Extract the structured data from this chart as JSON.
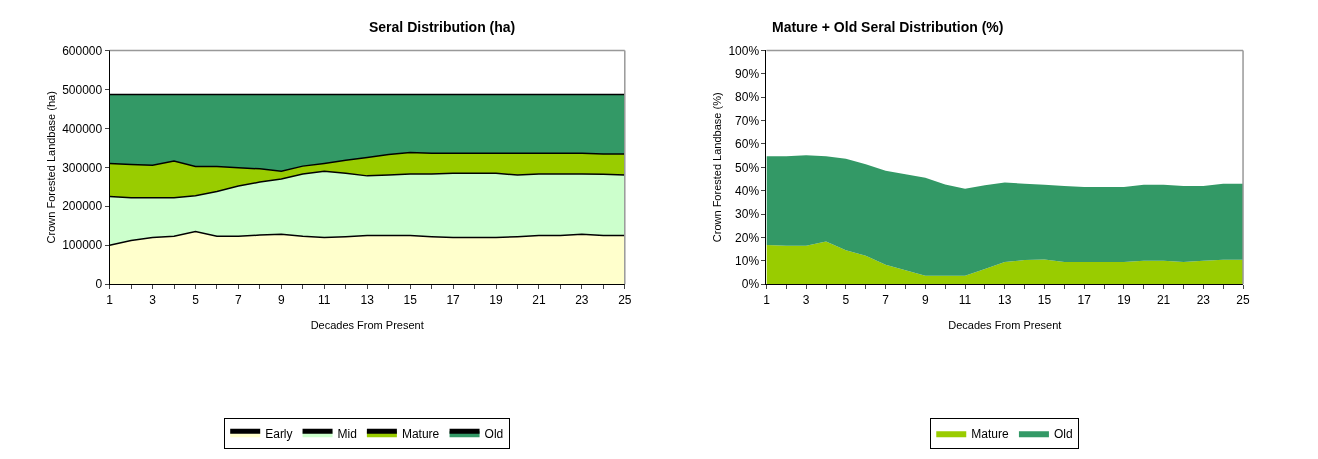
{
  "chart_data": [
    {
      "type": "area",
      "stacked": true,
      "title": "Seral Distribution (ha)",
      "xlabel": "Decades From Present",
      "ylabel": "Crown Forested Landbase (ha)",
      "x": [
        1,
        2,
        3,
        4,
        5,
        6,
        7,
        8,
        9,
        10,
        11,
        12,
        13,
        14,
        15,
        16,
        17,
        18,
        19,
        20,
        21,
        22,
        23,
        24,
        25
      ],
      "xlim": [
        1,
        25
      ],
      "xticks": [
        1,
        {
          "value": 2,
          "label": null
        },
        3,
        {
          "value": 4,
          "label": null
        },
        5,
        {
          "value": 6,
          "label": null
        },
        7,
        {
          "value": 8,
          "label": null
        },
        9,
        {
          "value": 10,
          "label": null
        },
        11,
        {
          "value": 12,
          "label": null
        },
        13,
        {
          "value": 14,
          "label": null
        },
        15,
        {
          "value": 16,
          "label": null
        },
        17,
        {
          "value": 18,
          "label": null
        },
        19,
        {
          "value": 20,
          "label": null
        },
        21,
        {
          "value": 22,
          "label": null
        },
        23,
        {
          "value": 24,
          "label": null
        },
        25
      ],
      "ylim": [
        0,
        600000
      ],
      "yticks": [
        0,
        100000,
        200000,
        300000,
        400000,
        500000,
        600000
      ],
      "legend": "bottom",
      "line_style": "solid",
      "series": [
        {
          "name": "Early",
          "color": "#ffffcc",
          "values": [
            100000,
            112000,
            120000,
            123000,
            135000,
            123000,
            123000,
            126000,
            128000,
            123000,
            120000,
            122000,
            125000,
            125000,
            125000,
            122000,
            120000,
            120000,
            120000,
            122000,
            125000,
            125000,
            128000,
            125000,
            125000
          ]
        },
        {
          "name": "Mid",
          "color": "#ccffcc",
          "values": [
            125000,
            110000,
            102000,
            99000,
            92000,
            115000,
            129000,
            136000,
            142000,
            160000,
            170000,
            163000,
            153000,
            155000,
            158000,
            161000,
            165000,
            165000,
            165000,
            158000,
            158000,
            158000,
            155000,
            157000,
            155000
          ]
        },
        {
          "name": "Mature",
          "color": "#99cc00",
          "values": [
            85000,
            85000,
            83000,
            94000,
            75000,
            64000,
            47000,
            34000,
            20000,
            20000,
            20000,
            33000,
            47000,
            53000,
            55000,
            53000,
            51000,
            51000,
            51000,
            56000,
            53000,
            53000,
            53000,
            52000,
            54000
          ]
        },
        {
          "name": "Old",
          "color": "#339966",
          "values": [
            177000,
            180000,
            182000,
            171000,
            185000,
            185000,
            188000,
            191000,
            197000,
            184000,
            177000,
            169000,
            162000,
            154000,
            149000,
            151000,
            151000,
            151000,
            151000,
            151000,
            151000,
            151000,
            151000,
            153000,
            153000
          ]
        }
      ]
    },
    {
      "type": "area",
      "stacked": true,
      "title": "Mature + Old Seral Distribution (%)",
      "xlabel": "Decades From Present",
      "ylabel": "Crown Forested Landbase (%)",
      "x": [
        1,
        2,
        3,
        4,
        5,
        6,
        7,
        8,
        9,
        10,
        11,
        12,
        13,
        14,
        15,
        16,
        17,
        18,
        19,
        20,
        21,
        22,
        23,
        24,
        25
      ],
      "xlim": [
        1,
        25
      ],
      "xticks": [
        1,
        {
          "value": 2,
          "label": null
        },
        3,
        {
          "value": 4,
          "label": null
        },
        5,
        {
          "value": 6,
          "label": null
        },
        7,
        {
          "value": 8,
          "label": null
        },
        9,
        {
          "value": 10,
          "label": null
        },
        11,
        {
          "value": 12,
          "label": null
        },
        13,
        {
          "value": 14,
          "label": null
        },
        15,
        {
          "value": 16,
          "label": null
        },
        17,
        {
          "value": 18,
          "label": null
        },
        19,
        {
          "value": 20,
          "label": null
        },
        21,
        {
          "value": 22,
          "label": null
        },
        23,
        {
          "value": 24,
          "label": null
        },
        25
      ],
      "ylim": [
        0,
        100
      ],
      "yticks": [
        {
          "value": 0,
          "label": "0%"
        },
        {
          "value": 10,
          "label": "10%"
        },
        {
          "value": 20,
          "label": "20%"
        },
        {
          "value": 30,
          "label": "30%"
        },
        {
          "value": 40,
          "label": "40%"
        },
        {
          "value": 50,
          "label": "50%"
        },
        {
          "value": 60,
          "label": "60%"
        },
        {
          "value": 70,
          "label": "70%"
        },
        {
          "value": 80,
          "label": "80%"
        },
        {
          "value": 90,
          "label": "90%"
        },
        {
          "value": 100,
          "label": "100%"
        }
      ],
      "legend": "bottom",
      "series": [
        {
          "name": "Mature",
          "color": "#99cc00",
          "values": [
            16.8,
            16.4,
            16.4,
            18.3,
            14.5,
            12.2,
            8.3,
            6,
            3.6,
            3.6,
            3.6,
            6.5,
            9.5,
            10.3,
            10.6,
            9.5,
            9.5,
            9.5,
            9.5,
            10,
            10,
            9.5,
            10,
            10.5,
            10.5
          ]
        },
        {
          "name": "Old",
          "color": "#339966",
          "values": [
            37.9,
            38.3,
            38.8,
            36.4,
            39.2,
            39.1,
            40.2,
            41,
            41.9,
            39,
            37.2,
            35.8,
            34,
            32.7,
            31.9,
            32.5,
            32.1,
            32.1,
            32.1,
            32.5,
            32.5,
            32.5,
            32,
            32.5,
            32.5
          ]
        }
      ]
    }
  ]
}
